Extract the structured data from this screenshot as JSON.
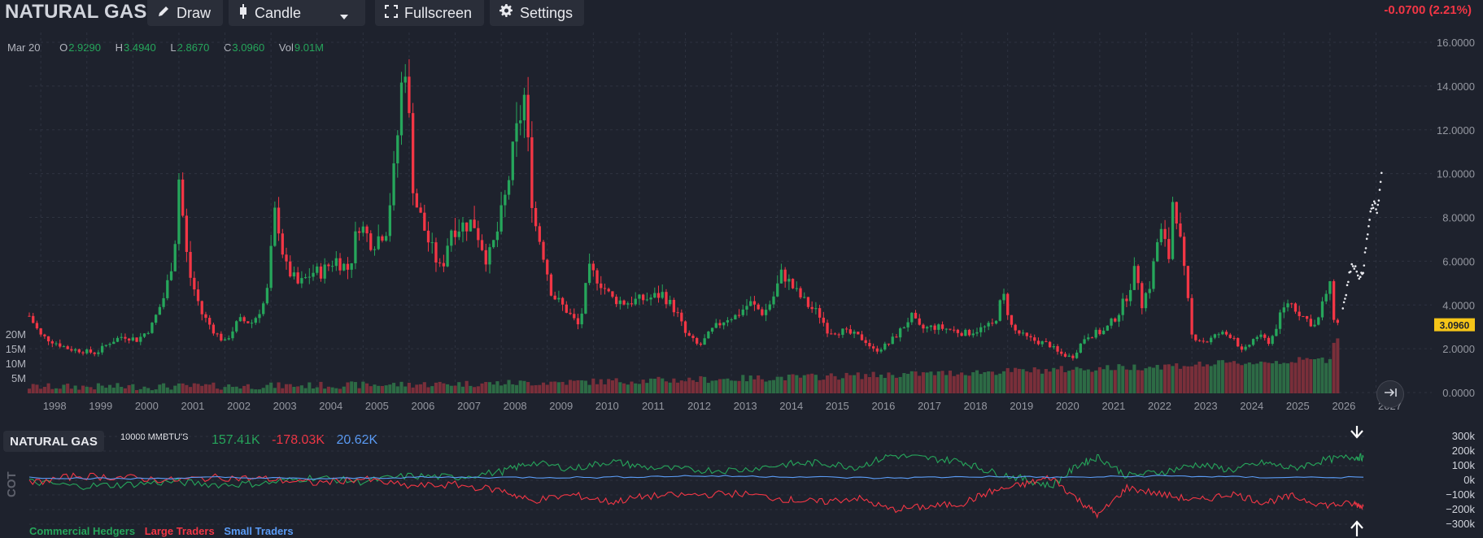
{
  "header": {
    "symbol": "NATURAL GAS",
    "draw_label": "Draw",
    "chart_type_label": "Candle",
    "fullscreen_label": "Fullscreen",
    "settings_label": "Settings",
    "change": "-0.0700 (2.21%)"
  },
  "ohlc": {
    "date": "Mar 20",
    "open_label": "O",
    "open": "2.9290",
    "high_label": "H",
    "high": "3.4940",
    "low_label": "L",
    "low": "2.8670",
    "close_label": "C",
    "close": "3.0960",
    "vol_label": "Vol",
    "vol": "9.01M"
  },
  "price_axis": {
    "ticks": [
      "16.0000",
      "14.0000",
      "12.0000",
      "10.0000",
      "8.0000",
      "6.0000",
      "4.0000",
      "2.0000",
      "0.0000"
    ],
    "last_price_tag": "3.0960"
  },
  "volume_axis": {
    "ticks": [
      "20M",
      "15M",
      "10M",
      "5M"
    ]
  },
  "time_axis": {
    "ticks": [
      "1998",
      "1999",
      "2000",
      "2001",
      "2002",
      "2003",
      "2004",
      "2005",
      "2006",
      "2007",
      "2008",
      "2009",
      "2010",
      "2011",
      "2012",
      "2013",
      "2014",
      "2015",
      "2016",
      "2017",
      "2018",
      "2019",
      "2020",
      "2021",
      "2022",
      "2023",
      "2024",
      "2025",
      "2026",
      "2027"
    ]
  },
  "cot": {
    "title": "NATURAL GAS",
    "unit": "10000 MMBTU'S",
    "side_label": "COT",
    "commercial_value": "157.41K",
    "large_value": "-178.03K",
    "small_value": "20.62K",
    "axis_ticks": [
      "300k",
      "200k",
      "100k",
      "0k",
      "−100k",
      "−200k",
      "−300k"
    ],
    "legend": [
      "Commercial Hedgers",
      "Large Traders",
      "Small Traders"
    ]
  },
  "colors": {
    "background": "#1e222d",
    "up": "#26a65b",
    "down": "#f23645",
    "small_traders": "#5b9cf6",
    "price_tag": "#f5c518",
    "grid": "#2e3340"
  },
  "chart_data": [
    {
      "type": "candlestick",
      "title": "NATURAL GAS",
      "ylim": [
        0,
        16
      ],
      "x_unit": "year",
      "xlim": [
        1997.75,
        2027.15
      ],
      "grid": true,
      "series": [
        {
          "name": "price",
          "points": [
            [
              1997.75,
              3.5
            ],
            [
              1998.0,
              2.6
            ],
            [
              1998.3,
              2.3
            ],
            [
              1998.6,
              2.0
            ],
            [
              1998.9,
              1.9
            ],
            [
              1999.2,
              1.8
            ],
            [
              1999.5,
              2.3
            ],
            [
              1999.8,
              2.6
            ],
            [
              2000.1,
              2.4
            ],
            [
              2000.4,
              3.0
            ],
            [
              2000.7,
              4.5
            ],
            [
              2000.9,
              6.5
            ],
            [
              2001.0,
              9.8
            ],
            [
              2001.2,
              5.6
            ],
            [
              2001.5,
              3.6
            ],
            [
              2001.8,
              2.7
            ],
            [
              2002.0,
              2.3
            ],
            [
              2002.3,
              3.3
            ],
            [
              2002.6,
              3.2
            ],
            [
              2002.9,
              4.3
            ],
            [
              2003.1,
              8.5
            ],
            [
              2003.3,
              5.8
            ],
            [
              2003.6,
              4.9
            ],
            [
              2003.9,
              5.5
            ],
            [
              2004.1,
              5.5
            ],
            [
              2004.4,
              6.1
            ],
            [
              2004.7,
              5.6
            ],
            [
              2004.9,
              7.8
            ],
            [
              2005.2,
              6.8
            ],
            [
              2005.5,
              7.5
            ],
            [
              2005.7,
              10.5
            ],
            [
              2005.9,
              15.7
            ],
            [
              2006.1,
              9.0
            ],
            [
              2006.4,
              7.0
            ],
            [
              2006.7,
              5.5
            ],
            [
              2006.9,
              7.5
            ],
            [
              2007.1,
              7.6
            ],
            [
              2007.4,
              7.8
            ],
            [
              2007.7,
              6.0
            ],
            [
              2007.9,
              7.2
            ],
            [
              2008.1,
              9.0
            ],
            [
              2008.3,
              11.5
            ],
            [
              2008.5,
              13.5
            ],
            [
              2008.7,
              8.0
            ],
            [
              2008.9,
              6.5
            ],
            [
              2009.1,
              4.5
            ],
            [
              2009.4,
              3.8
            ],
            [
              2009.7,
              3.0
            ],
            [
              2009.9,
              5.6
            ],
            [
              2010.1,
              5.2
            ],
            [
              2010.4,
              4.3
            ],
            [
              2010.7,
              4.1
            ],
            [
              2010.9,
              4.2
            ],
            [
              2011.2,
              4.3
            ],
            [
              2011.5,
              4.5
            ],
            [
              2011.8,
              3.7
            ],
            [
              2012.0,
              2.7
            ],
            [
              2012.3,
              2.1
            ],
            [
              2012.6,
              2.9
            ],
            [
              2012.9,
              3.4
            ],
            [
              2013.1,
              3.5
            ],
            [
              2013.4,
              4.1
            ],
            [
              2013.7,
              3.6
            ],
            [
              2013.9,
              4.3
            ],
            [
              2014.1,
              5.5
            ],
            [
              2014.4,
              4.6
            ],
            [
              2014.7,
              3.9
            ],
            [
              2014.9,
              3.6
            ],
            [
              2015.1,
              2.8
            ],
            [
              2015.4,
              2.8
            ],
            [
              2015.7,
              2.6
            ],
            [
              2015.9,
              2.4
            ],
            [
              2016.1,
              1.9
            ],
            [
              2016.4,
              2.2
            ],
            [
              2016.7,
              2.9
            ],
            [
              2016.9,
              3.5
            ],
            [
              2017.1,
              2.9
            ],
            [
              2017.4,
              3.0
            ],
            [
              2017.7,
              2.9
            ],
            [
              2017.9,
              2.8
            ],
            [
              2018.1,
              2.7
            ],
            [
              2018.4,
              2.9
            ],
            [
              2018.7,
              3.1
            ],
            [
              2018.9,
              4.5
            ],
            [
              2019.1,
              2.9
            ],
            [
              2019.4,
              2.5
            ],
            [
              2019.7,
              2.3
            ],
            [
              2019.9,
              2.2
            ],
            [
              2020.1,
              1.8
            ],
            [
              2020.4,
              1.6
            ],
            [
              2020.7,
              2.6
            ],
            [
              2020.9,
              2.7
            ],
            [
              2021.1,
              2.8
            ],
            [
              2021.4,
              3.6
            ],
            [
              2021.6,
              4.5
            ],
            [
              2021.8,
              5.8
            ],
            [
              2021.9,
              4.0
            ],
            [
              2022.1,
              5.0
            ],
            [
              2022.3,
              7.5
            ],
            [
              2022.5,
              6.2
            ],
            [
              2022.6,
              9.3
            ],
            [
              2022.8,
              6.0
            ],
            [
              2022.9,
              4.4
            ],
            [
              2023.0,
              2.6
            ],
            [
              2023.3,
              2.3
            ],
            [
              2023.6,
              2.7
            ],
            [
              2023.9,
              2.6
            ],
            [
              2024.1,
              1.8
            ],
            [
              2024.4,
              2.6
            ],
            [
              2024.7,
              2.3
            ],
            [
              2024.9,
              3.4
            ],
            [
              2025.1,
              4.2
            ],
            [
              2025.4,
              3.5
            ],
            [
              2025.7,
              3.0
            ],
            [
              2025.9,
              4.5
            ],
            [
              2026.0,
              4.8
            ],
            [
              2026.1,
              3.2
            ],
            [
              2026.2,
              3.1
            ]
          ]
        },
        {
          "name": "volume",
          "ylim": [
            0,
            20000000
          ],
          "note_values": "approx monthly volume rising over time"
        },
        {
          "name": "forecast",
          "points": [
            [
              2026.28,
              3.9
            ],
            [
              2026.35,
              4.6
            ],
            [
              2026.42,
              5.4
            ],
            [
              2026.5,
              5.9
            ],
            [
              2026.58,
              5.6
            ],
            [
              2026.66,
              5.2
            ],
            [
              2026.72,
              5.6
            ],
            [
              2026.78,
              6.6
            ],
            [
              2026.84,
              7.6
            ],
            [
              2026.9,
              8.4
            ],
            [
              2026.96,
              8.6
            ],
            [
              2027.02,
              8.3
            ],
            [
              2027.08,
              9.2
            ],
            [
              2027.14,
              10.4
            ]
          ]
        }
      ]
    },
    {
      "type": "line",
      "title": "COT",
      "ylim": [
        -300,
        300
      ],
      "x_unit": "year",
      "series": [
        {
          "name": "Commercial Hedgers",
          "points": [
            [
              1998.0,
              -10
            ],
            [
              1999.0,
              -40
            ],
            [
              2000.0,
              -30
            ],
            [
              2001.0,
              -10
            ],
            [
              2002.0,
              -30
            ],
            [
              2003.0,
              -20
            ],
            [
              2004.0,
              20
            ],
            [
              2005.0,
              -10
            ],
            [
              2006.0,
              30
            ],
            [
              2007.0,
              20
            ],
            [
              2008.0,
              60
            ],
            [
              2008.6,
              120
            ],
            [
              2009.5,
              80
            ],
            [
              2010.3,
              130
            ],
            [
              2011.0,
              90
            ],
            [
              2012.0,
              70
            ],
            [
              2013.0,
              70
            ],
            [
              2014.0,
              110
            ],
            [
              2014.7,
              120
            ],
            [
              2015.5,
              90
            ],
            [
              2016.2,
              170
            ],
            [
              2017.0,
              150
            ],
            [
              2017.7,
              130
            ],
            [
              2018.3,
              60
            ],
            [
              2019.0,
              10
            ],
            [
              2019.6,
              -40
            ],
            [
              2020.2,
              110
            ],
            [
              2020.6,
              160
            ],
            [
              2021.2,
              30
            ],
            [
              2022.0,
              60
            ],
            [
              2022.7,
              110
            ],
            [
              2023.4,
              70
            ],
            [
              2024.1,
              120
            ],
            [
              2024.7,
              80
            ],
            [
              2025.4,
              140
            ],
            [
              2026.0,
              160
            ],
            [
              2026.2,
              157
            ]
          ]
        },
        {
          "name": "Large Traders",
          "points": [
            [
              1998.0,
              -20
            ],
            [
              1999.0,
              30
            ],
            [
              2000.0,
              20
            ],
            [
              2001.0,
              0
            ],
            [
              2002.0,
              20
            ],
            [
              2003.0,
              10
            ],
            [
              2004.0,
              -20
            ],
            [
              2005.0,
              10
            ],
            [
              2006.0,
              -40
            ],
            [
              2007.0,
              -30
            ],
            [
              2008.0,
              -70
            ],
            [
              2008.6,
              -140
            ],
            [
              2009.5,
              -100
            ],
            [
              2010.3,
              -150
            ],
            [
              2011.0,
              -110
            ],
            [
              2012.0,
              -100
            ],
            [
              2013.0,
              -90
            ],
            [
              2014.0,
              -130
            ],
            [
              2014.7,
              -150
            ],
            [
              2015.5,
              -120
            ],
            [
              2016.2,
              -200
            ],
            [
              2017.0,
              -180
            ],
            [
              2017.7,
              -160
            ],
            [
              2018.3,
              -80
            ],
            [
              2019.0,
              -30
            ],
            [
              2019.6,
              20
            ],
            [
              2020.2,
              -140
            ],
            [
              2020.6,
              -240
            ],
            [
              2021.2,
              -50
            ],
            [
              2022.0,
              -100
            ],
            [
              2022.7,
              -140
            ],
            [
              2023.4,
              -90
            ],
            [
              2024.1,
              -150
            ],
            [
              2024.7,
              -110
            ],
            [
              2025.4,
              -170
            ],
            [
              2026.0,
              -160
            ],
            [
              2026.2,
              -178
            ]
          ]
        },
        {
          "name": "Small Traders",
          "points": [
            [
              1998.0,
              20
            ],
            [
              2000.0,
              10
            ],
            [
              2002.0,
              20
            ],
            [
              2004.0,
              10
            ],
            [
              2006.0,
              20
            ],
            [
              2008.0,
              20
            ],
            [
              2010.0,
              20
            ],
            [
              2012.0,
              30
            ],
            [
              2014.0,
              25
            ],
            [
              2016.0,
              15
            ],
            [
              2018.0,
              25
            ],
            [
              2020.0,
              20
            ],
            [
              2022.0,
              30
            ],
            [
              2024.0,
              20
            ],
            [
              2026.2,
              21
            ]
          ]
        }
      ]
    }
  ]
}
